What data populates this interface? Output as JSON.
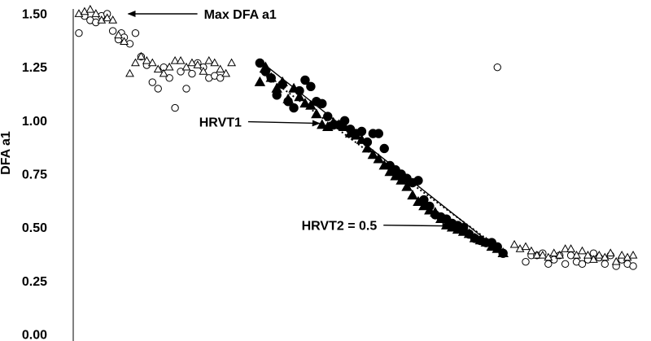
{
  "chart_data": {
    "type": "scatter",
    "ylabel": "DFA a1",
    "xlabel": "",
    "ylim": [
      0,
      1.5
    ],
    "xlim": [
      0,
      100
    ],
    "y_ticks": [
      "0.00",
      "0.25",
      "0.50",
      "0.75",
      "1.00",
      "1.25",
      "1.50"
    ],
    "grid": false,
    "series": [
      {
        "name": "open circles",
        "marker": "circle-open",
        "points": [
          [
            1,
            1.41
          ],
          [
            2,
            1.49
          ],
          [
            3,
            1.47
          ],
          [
            4,
            1.46
          ],
          [
            5,
            1.49
          ],
          [
            6,
            1.5
          ],
          [
            7,
            1.42
          ],
          [
            8,
            1.38
          ],
          [
            8.5,
            1.41
          ],
          [
            9,
            1.39
          ],
          [
            10,
            1.36
          ],
          [
            11,
            1.41
          ],
          [
            12,
            1.3
          ],
          [
            13,
            1.26
          ],
          [
            14,
            1.18
          ],
          [
            15,
            1.15
          ],
          [
            16,
            1.25
          ],
          [
            17,
            1.2
          ],
          [
            18,
            1.06
          ],
          [
            19,
            1.23
          ],
          [
            20,
            1.15
          ],
          [
            21,
            1.22
          ],
          [
            22,
            1.27
          ],
          [
            23,
            1.25
          ],
          [
            24,
            1.2
          ],
          [
            25,
            1.21
          ],
          [
            26,
            1.2
          ],
          [
            75,
            1.25
          ],
          [
            80,
            0.34
          ],
          [
            81,
            0.37
          ],
          [
            82,
            0.37
          ],
          [
            83,
            0.38
          ],
          [
            84,
            0.33
          ],
          [
            85,
            0.35
          ],
          [
            86,
            0.37
          ],
          [
            87,
            0.33
          ],
          [
            88,
            0.37
          ],
          [
            89,
            0.34
          ],
          [
            90,
            0.33
          ],
          [
            91,
            0.35
          ],
          [
            92,
            0.38
          ],
          [
            93,
            0.36
          ],
          [
            94,
            0.33
          ],
          [
            95,
            0.37
          ],
          [
            96,
            0.32
          ],
          [
            97,
            0.35
          ],
          [
            98,
            0.33
          ],
          [
            99,
            0.32
          ]
        ]
      },
      {
        "name": "open triangles",
        "marker": "triangle-open",
        "points": [
          [
            1,
            1.5
          ],
          [
            2,
            1.51
          ],
          [
            3,
            1.52
          ],
          [
            4,
            1.5
          ],
          [
            5,
            1.47
          ],
          [
            6,
            1.48
          ],
          [
            7,
            1.47
          ],
          [
            8,
            1.4
          ],
          [
            9,
            1.37
          ],
          [
            10,
            1.22
          ],
          [
            11,
            1.27
          ],
          [
            12,
            1.3
          ],
          [
            13,
            1.28
          ],
          [
            14,
            1.27
          ],
          [
            15,
            1.24
          ],
          [
            16,
            1.22
          ],
          [
            17,
            1.25
          ],
          [
            18,
            1.28
          ],
          [
            19,
            1.28
          ],
          [
            20,
            1.25
          ],
          [
            21,
            1.27
          ],
          [
            22,
            1.26
          ],
          [
            23,
            1.23
          ],
          [
            24,
            1.28
          ],
          [
            25,
            1.27
          ],
          [
            26,
            1.24
          ],
          [
            27,
            1.22
          ],
          [
            28,
            1.27
          ],
          [
            78,
            0.42
          ],
          [
            79,
            0.4
          ],
          [
            80,
            0.41
          ],
          [
            81,
            0.39
          ],
          [
            82,
            0.37
          ],
          [
            83,
            0.37
          ],
          [
            84,
            0.36
          ],
          [
            85,
            0.38
          ],
          [
            86,
            0.37
          ],
          [
            87,
            0.4
          ],
          [
            88,
            0.4
          ],
          [
            89,
            0.37
          ],
          [
            90,
            0.39
          ],
          [
            91,
            0.37
          ],
          [
            92,
            0.35
          ],
          [
            93,
            0.37
          ],
          [
            94,
            0.36
          ],
          [
            95,
            0.38
          ],
          [
            96,
            0.34
          ],
          [
            97,
            0.37
          ],
          [
            98,
            0.36
          ],
          [
            99,
            0.37
          ]
        ]
      },
      {
        "name": "filled circles",
        "marker": "circle-filled",
        "points": [
          [
            33,
            1.27
          ],
          [
            34,
            1.23
          ],
          [
            35,
            1.2
          ],
          [
            36,
            1.12
          ],
          [
            37,
            1.17
          ],
          [
            38,
            1.09
          ],
          [
            39,
            1.06
          ],
          [
            40,
            1.14
          ],
          [
            41,
            1.19
          ],
          [
            42,
            1.16
          ],
          [
            43,
            1.09
          ],
          [
            44,
            1.08
          ],
          [
            45,
            1.02
          ],
          [
            46,
            0.98
          ],
          [
            47,
            0.98
          ],
          [
            48,
            1.0
          ],
          [
            49,
            0.96
          ],
          [
            50,
            0.94
          ],
          [
            51,
            0.95
          ],
          [
            52,
            0.9
          ],
          [
            53,
            0.94
          ],
          [
            54,
            0.94
          ],
          [
            55,
            0.87
          ],
          [
            56,
            0.79
          ],
          [
            57,
            0.77
          ],
          [
            58,
            0.75
          ],
          [
            59,
            0.73
          ],
          [
            60,
            0.71
          ],
          [
            61,
            0.72
          ],
          [
            62,
            0.63
          ],
          [
            63,
            0.6
          ],
          [
            64,
            0.56
          ],
          [
            65,
            0.55
          ],
          [
            66,
            0.54
          ],
          [
            67,
            0.52
          ],
          [
            68,
            0.51
          ],
          [
            69,
            0.5
          ],
          [
            70,
            0.47
          ],
          [
            71,
            0.45
          ],
          [
            72,
            0.44
          ],
          [
            73,
            0.43
          ],
          [
            74,
            0.43
          ],
          [
            75,
            0.41
          ],
          [
            76,
            0.38
          ]
        ]
      },
      {
        "name": "filled triangles",
        "marker": "triangle-filled",
        "points": [
          [
            33,
            1.18
          ],
          [
            34,
            1.25
          ],
          [
            35,
            1.2
          ],
          [
            36,
            1.15
          ],
          [
            37,
            1.18
          ],
          [
            38,
            1.1
          ],
          [
            39,
            1.15
          ],
          [
            40,
            1.11
          ],
          [
            41,
            1.08
          ],
          [
            42,
            1.07
          ],
          [
            43,
            1.03
          ],
          [
            44,
            0.98
          ],
          [
            45,
            0.97
          ],
          [
            46,
            0.99
          ],
          [
            47,
            0.98
          ],
          [
            48,
            0.97
          ],
          [
            49,
            0.94
          ],
          [
            50,
            0.93
          ],
          [
            51,
            0.91
          ],
          [
            52,
            0.87
          ],
          [
            53,
            0.84
          ],
          [
            54,
            0.82
          ],
          [
            55,
            0.79
          ],
          [
            56,
            0.76
          ],
          [
            57,
            0.74
          ],
          [
            58,
            0.72
          ],
          [
            59,
            0.69
          ],
          [
            60,
            0.65
          ],
          [
            61,
            0.62
          ],
          [
            62,
            0.6
          ],
          [
            63,
            0.58
          ],
          [
            64,
            0.57
          ],
          [
            65,
            0.54
          ],
          [
            66,
            0.51
          ],
          [
            67,
            0.5
          ],
          [
            68,
            0.49
          ],
          [
            69,
            0.48
          ],
          [
            70,
            0.47
          ],
          [
            71,
            0.45
          ],
          [
            72,
            0.44
          ],
          [
            73,
            0.43
          ],
          [
            74,
            0.41
          ],
          [
            75,
            0.4
          ],
          [
            76,
            0.38
          ]
        ]
      }
    ],
    "trendlines": [
      {
        "name": "solid trend",
        "style": "solid",
        "from": [
          33,
          1.28
        ],
        "to": [
          76,
          0.38
        ]
      },
      {
        "name": "dotted trend",
        "style": "dotted",
        "from": [
          33,
          1.23
        ],
        "to": [
          76,
          0.39
        ]
      }
    ],
    "annotations": [
      {
        "text": "Max DFA a1",
        "point": [
          8,
          1.5
        ]
      },
      {
        "text": "HRVT1",
        "point": [
          45,
          0.98
        ]
      },
      {
        "text": "HRVT2 = 0.5",
        "point": [
          68,
          0.5
        ]
      }
    ]
  }
}
